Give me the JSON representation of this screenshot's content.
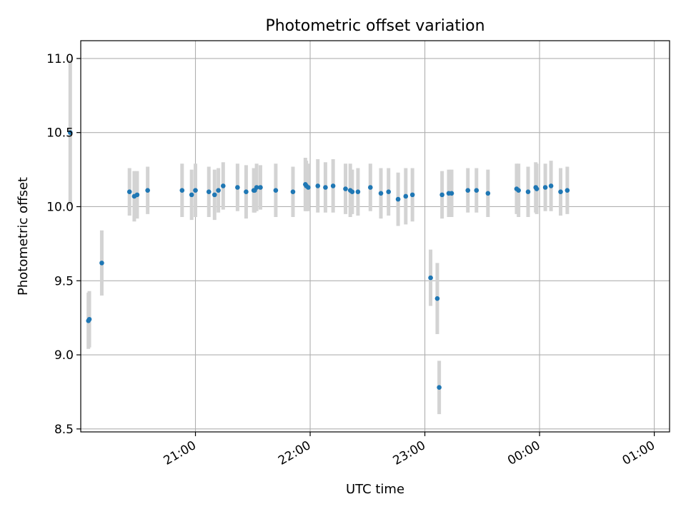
{
  "chart_data": {
    "type": "scatter",
    "title": "Photometric offset variation",
    "xlabel": "UTC time",
    "ylabel": "Photometric offset",
    "x_unit": "minutes",
    "xlim": [
      1260,
      1568
    ],
    "ylim": [
      8.48,
      11.12
    ],
    "yticks": [
      8.5,
      9.0,
      9.5,
      10.0,
      10.5,
      11.0
    ],
    "ytick_labels": [
      "8.5",
      "9.0",
      "9.5",
      "10.0",
      "10.5",
      "11.0"
    ],
    "xticks": [
      1320,
      1380,
      1440,
      1500,
      1560
    ],
    "xtick_labels": [
      "21:00",
      "22:00",
      "23:00",
      "00:00",
      "01:00"
    ],
    "grid": true,
    "colors": {
      "point": "#1f77b4",
      "errorbar": "#d3d3d3",
      "grid": "#b0b0b0"
    },
    "series": [
      {
        "x": [
          1254.5,
          1264.0,
          1264.5,
          1271.0,
          1285.5,
          1288.0,
          1289.5,
          1295.0,
          1313.0,
          1318.0,
          1320.0,
          1327.0,
          1330.0,
          1332.0,
          1334.5,
          1342.0,
          1346.5,
          1350.5,
          1351.0,
          1352.0,
          1354.0,
          1362.0,
          1371.0,
          1377.5,
          1378.0,
          1379.0,
          1384.0,
          1388.0,
          1392.0,
          1398.5,
          1401.0,
          1402.0,
          1405.0,
          1411.5,
          1417.0,
          1421.0,
          1426.0,
          1430.0,
          1433.5,
          1443.0,
          1446.5,
          1447.5,
          1449.0,
          1452.5,
          1454.0,
          1462.5,
          1467.0,
          1473.0,
          1488.0,
          1489.0,
          1494.0,
          1498.0,
          1498.5,
          1503.0,
          1506.0,
          1511.0,
          1514.5
        ],
        "y": [
          10.5,
          9.23,
          9.24,
          9.62,
          10.1,
          10.07,
          10.08,
          10.11,
          10.11,
          10.08,
          10.11,
          10.1,
          10.08,
          10.11,
          10.14,
          10.13,
          10.1,
          10.11,
          10.11,
          10.13,
          10.13,
          10.11,
          10.1,
          10.15,
          10.14,
          10.13,
          10.14,
          10.13,
          10.14,
          10.12,
          10.11,
          10.1,
          10.1,
          10.13,
          10.09,
          10.1,
          10.05,
          10.07,
          10.08,
          9.52,
          9.38,
          8.78,
          10.08,
          10.09,
          10.09,
          10.11,
          10.11,
          10.09,
          10.12,
          10.11,
          10.1,
          10.13,
          10.12,
          10.13,
          10.14,
          10.1,
          10.11
        ],
        "yerr": [
          0.49,
          0.19,
          0.19,
          0.22,
          0.16,
          0.17,
          0.16,
          0.16,
          0.18,
          0.17,
          0.18,
          0.17,
          0.17,
          0.15,
          0.16,
          0.16,
          0.18,
          0.15,
          0.15,
          0.16,
          0.15,
          0.18,
          0.17,
          0.18,
          0.17,
          0.16,
          0.18,
          0.17,
          0.18,
          0.17,
          0.18,
          0.15,
          0.16,
          0.16,
          0.17,
          0.16,
          0.18,
          0.19,
          0.18,
          0.19,
          0.24,
          0.18,
          0.16,
          0.16,
          0.16,
          0.15,
          0.15,
          0.16,
          0.17,
          0.18,
          0.17,
          0.17,
          0.17,
          0.16,
          0.17,
          0.16,
          0.16
        ]
      }
    ]
  }
}
